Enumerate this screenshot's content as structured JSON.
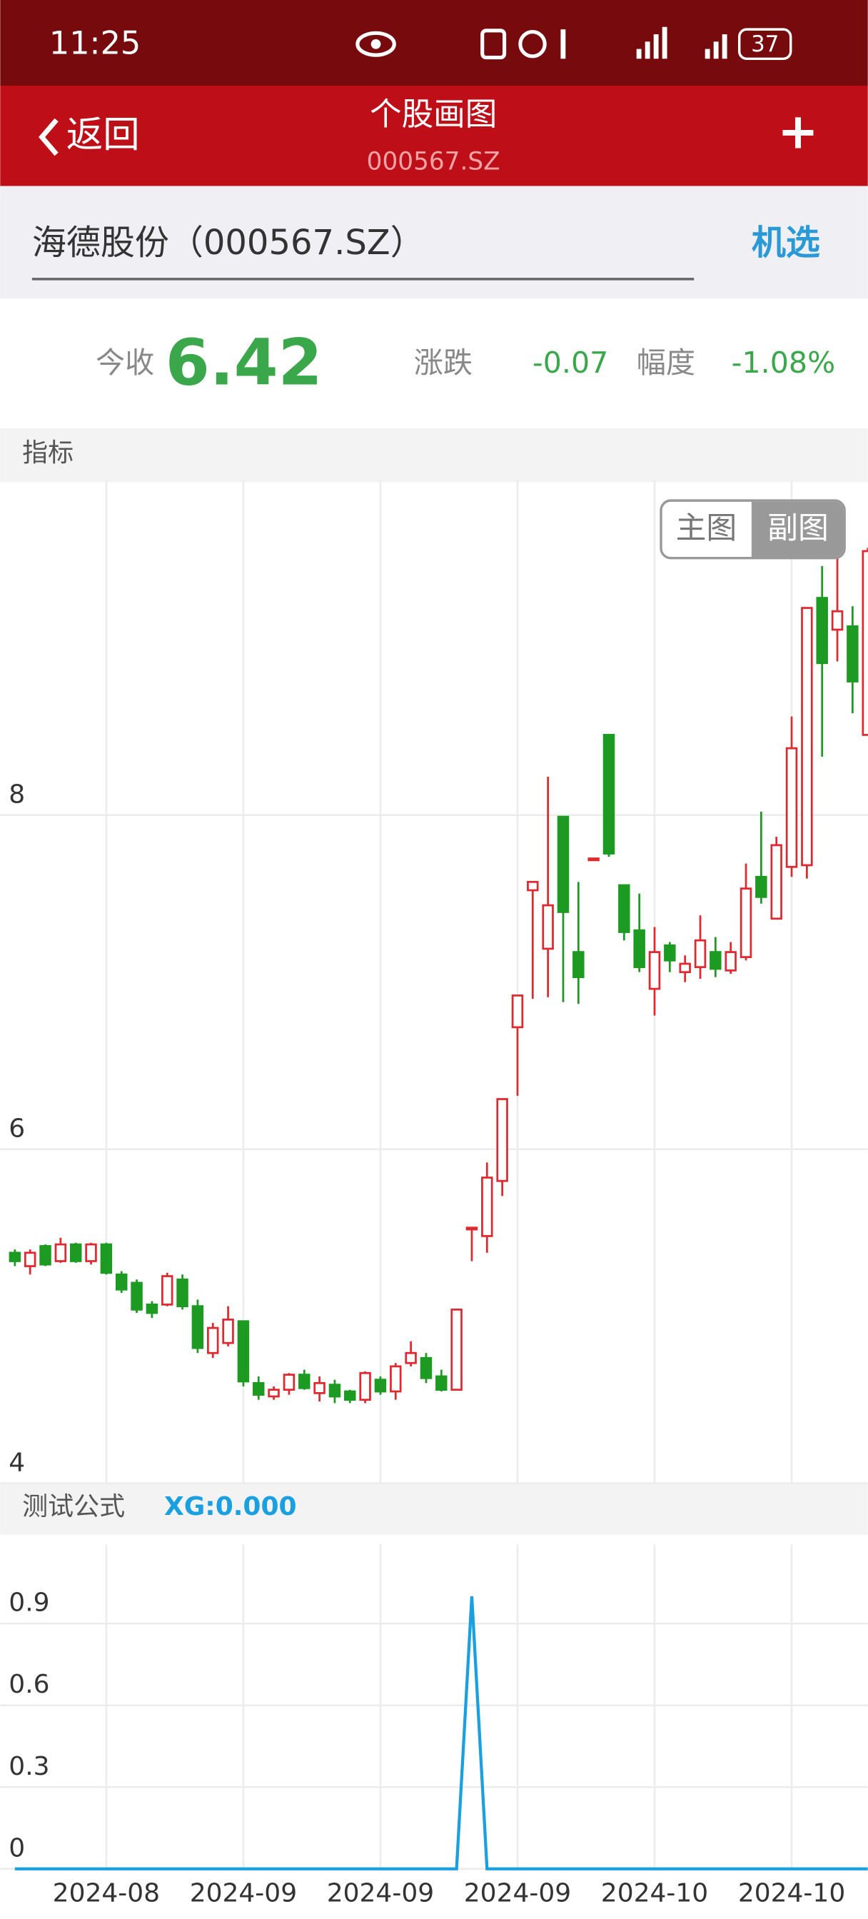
{
  "status_bar": {
    "time": "11:25",
    "battery": "37"
  },
  "header": {
    "back": "返回",
    "title": "个股画图",
    "subtitle": "000567.SZ",
    "add": "+"
  },
  "search": {
    "stock": "海德股份（000567.SZ）",
    "button": "机选"
  },
  "quote": {
    "close_label": "今收",
    "close": "6.42",
    "change_label": "涨跌",
    "change": "-0.07",
    "range_label": "幅度",
    "range": "-1.08%"
  },
  "indicator_bar": {
    "label": "指标",
    "main": "主图",
    "sub": "副图"
  },
  "formula_bar": {
    "label": "测试公式"
  },
  "chart_data": [
    {
      "type": "candlestick",
      "open": [
        5.38,
        5.3,
        5.42,
        5.33,
        5.43,
        5.33,
        5.43,
        5.25,
        5.2,
        5.07,
        5.07,
        5.22,
        5.06,
        4.78,
        4.84,
        4.97,
        4.6,
        4.52,
        4.56,
        4.65,
        4.54,
        4.59,
        4.55,
        4.5,
        4.62,
        4.55,
        4.72,
        4.75,
        4.64,
        4.56,
        5.52,
        5.48,
        5.81,
        6.73,
        7.55,
        7.2,
        7.99,
        7.18,
        7.73,
        8.48,
        7.58,
        7.31,
        6.96,
        7.22,
        7.06,
        7.09,
        7.18,
        7.07,
        7.15,
        7.63,
        7.38,
        7.69,
        7.7,
        9.3,
        9.11,
        9.13,
        8.48
      ],
      "high": [
        5.4,
        5.4,
        5.43,
        5.47,
        5.44,
        5.44,
        5.44,
        5.27,
        5.22,
        5.09,
        5.26,
        5.25,
        5.1,
        4.96,
        5.06,
        4.97,
        4.64,
        4.58,
        4.66,
        4.68,
        4.64,
        4.62,
        4.56,
        4.67,
        4.64,
        4.72,
        4.85,
        4.78,
        4.68,
        5.04,
        5.53,
        5.92,
        6.3,
        6.92,
        7.6,
        8.23,
        7.99,
        7.6,
        7.74,
        8.48,
        7.58,
        7.53,
        7.33,
        7.24,
        7.16,
        7.4,
        7.27,
        7.24,
        7.71,
        8.02,
        7.87,
        8.59,
        9.24,
        9.49,
        9.55,
        9.25,
        9.6
      ],
      "low": [
        5.3,
        5.25,
        5.3,
        5.32,
        5.32,
        5.31,
        5.25,
        5.14,
        5.02,
        4.99,
        5.06,
        5.04,
        4.78,
        4.75,
        4.82,
        4.58,
        4.5,
        4.5,
        4.53,
        4.56,
        4.49,
        4.48,
        4.48,
        4.48,
        4.53,
        4.5,
        4.7,
        4.6,
        4.55,
        4.56,
        5.33,
        5.38,
        5.72,
        6.32,
        6.9,
        6.91,
        6.88,
        6.87,
        7.73,
        7.75,
        7.25,
        7.06,
        6.8,
        7.06,
        7.0,
        7.02,
        7.03,
        7.05,
        7.13,
        7.47,
        7.38,
        7.63,
        7.62,
        8.35,
        8.92,
        8.61,
        8.48
      ],
      "close": [
        5.33,
        5.38,
        5.31,
        5.43,
        5.33,
        5.43,
        5.26,
        5.16,
        5.04,
        5.02,
        5.24,
        5.06,
        4.81,
        4.93,
        4.98,
        4.61,
        4.53,
        4.56,
        4.65,
        4.57,
        4.6,
        4.52,
        4.5,
        4.66,
        4.55,
        4.7,
        4.78,
        4.63,
        4.56,
        5.04,
        5.53,
        5.83,
        6.3,
        6.92,
        7.6,
        7.46,
        7.42,
        7.03,
        7.74,
        7.77,
        7.3,
        7.09,
        7.18,
        7.13,
        7.11,
        7.25,
        7.08,
        7.18,
        7.56,
        7.51,
        7.82,
        8.4,
        9.24,
        8.91,
        9.22,
        8.8,
        9.58
      ],
      "up_color": "#e0282e",
      "down_color": "#1c9a22",
      "ylim": [
        4,
        10
      ],
      "yticks": [
        4,
        6,
        8
      ],
      "grid": true
    },
    {
      "type": "line",
      "categories": [
        null,
        null,
        null,
        null,
        null,
        null,
        "2024-08",
        null,
        null,
        null,
        null,
        null,
        null,
        null,
        null,
        "2024-09",
        null,
        null,
        null,
        null,
        null,
        null,
        null,
        null,
        "2024-09",
        null,
        null,
        null,
        null,
        null,
        null,
        null,
        null,
        "2024-09",
        null,
        null,
        null,
        null,
        null,
        null,
        null,
        null,
        "2024-10",
        null,
        null,
        null,
        null,
        null,
        null,
        null,
        null,
        "2024-10",
        null,
        null,
        null,
        null,
        null
      ],
      "series": [
        {
          "name": "XG:0.000",
          "color": "#1aa0e0",
          "values": [
            0,
            0,
            0,
            0,
            0,
            0,
            0,
            0,
            0,
            0,
            0,
            0,
            0,
            0,
            0,
            0,
            0,
            0,
            0,
            0,
            0,
            0,
            0,
            0,
            0,
            0,
            0,
            0,
            0,
            0,
            1,
            0,
            0,
            0,
            0,
            0,
            0,
            0,
            0,
            0,
            0,
            0,
            0,
            0,
            0,
            0,
            0,
            0,
            0,
            0,
            0,
            0,
            0,
            0,
            0,
            0,
            0
          ]
        }
      ],
      "ylim": [
        0,
        1.19
      ],
      "yticks": [
        0,
        0.3,
        0.6,
        0.9
      ],
      "grid": true
    }
  ]
}
